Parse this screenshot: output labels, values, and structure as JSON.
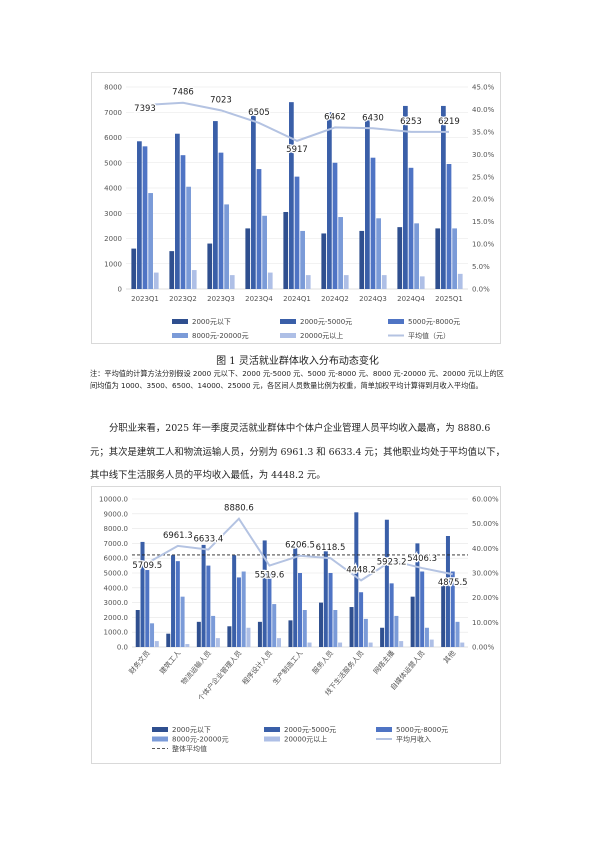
{
  "chart1": {
    "type": "bar",
    "title": "",
    "categories": [
      "2023Q1",
      "2023Q2",
      "2023Q3",
      "2023Q4",
      "2024Q1",
      "2024Q2",
      "2024Q3",
      "2024Q4",
      "2025Q1"
    ],
    "series": [
      {
        "name": "2000元以下",
        "color": "#2f4f8f",
        "values": [
          1600,
          1500,
          1800,
          2400,
          3050,
          2200,
          2300,
          2450,
          2400
        ]
      },
      {
        "name": "2000元-5000元",
        "color": "#3a5fa8",
        "values": [
          5850,
          6150,
          6650,
          6950,
          7400,
          7000,
          6850,
          7250,
          7250
        ]
      },
      {
        "name": "5000元-8000元",
        "color": "#4f74c4",
        "values": [
          5650,
          5300,
          5400,
          4750,
          4450,
          5000,
          5200,
          4800,
          4950
        ]
      },
      {
        "name": "8000元-20000元",
        "color": "#7b9bd8",
        "values": [
          3800,
          4050,
          3350,
          2900,
          2300,
          2850,
          2800,
          2600,
          2400
        ]
      },
      {
        "name": "20000元以上",
        "color": "#aebfe6",
        "values": [
          650,
          750,
          550,
          650,
          550,
          550,
          550,
          500,
          600
        ]
      }
    ],
    "line": {
      "name": "平均值（元）",
      "color": "#b4c3e2",
      "values": [
        7393,
        7486,
        7023,
        6505,
        5917,
        6462,
        6430,
        6253,
        6219
      ],
      "labels": [
        "7393",
        "7486",
        "7023",
        "6505",
        "5917",
        "6462",
        "6430",
        "6253",
        "6219"
      ],
      "pct": [
        41.0,
        41.5,
        39.8,
        37.0,
        33.0,
        36.0,
        35.8,
        35.0,
        35.0
      ]
    },
    "y_left": {
      "min": 0,
      "max": 8000,
      "step": 1000,
      "ticks": [
        "0",
        "1000",
        "2000",
        "3000",
        "4000",
        "5000",
        "6000",
        "7000",
        "8000"
      ]
    },
    "y_right": {
      "min": 0,
      "max": 45,
      "step": 5,
      "ticks": [
        "0.0%",
        "5.0%",
        "10.0%",
        "15.0%",
        "20.0%",
        "25.0%",
        "30.0%",
        "35.0%",
        "40.0%",
        "45.0%"
      ]
    },
    "legend": [
      "2000元以下",
      "2000元-5000元",
      "5000元-8000元",
      "8000元-20000元",
      "20000元以上",
      "平均值（元）"
    ],
    "legend_placement": "bottom",
    "grid": true
  },
  "chart2": {
    "type": "bar",
    "title": "",
    "categories": [
      "财务文员",
      "建筑工人",
      "物流运输人员",
      "个体户企业管理人员",
      "程序设计人员",
      "生产制造工人",
      "服务人员",
      "线下生活服务人员",
      "网络主播",
      "自媒体运营人员",
      "其他"
    ],
    "series": [
      {
        "name": "2000元以下",
        "color": "#2f4f8f",
        "values": [
          2500,
          900,
          1700,
          1400,
          1700,
          1800,
          3000,
          2700,
          1300,
          3400,
          4200
        ]
      },
      {
        "name": "2000元-5000元",
        "color": "#3a5fa8",
        "values": [
          7100,
          6200,
          6900,
          6200,
          7200,
          6700,
          6600,
          9100,
          8600,
          7000,
          7500
        ]
      },
      {
        "name": "5000元-8000元",
        "color": "#4f74c4",
        "values": [
          5200,
          5800,
          5500,
          4700,
          5000,
          5000,
          5000,
          3700,
          4300,
          5100,
          5100
        ]
      },
      {
        "name": "8000元-20000元",
        "color": "#7b9bd8",
        "values": [
          1600,
          3400,
          2100,
          5100,
          2900,
          2500,
          2500,
          1900,
          2100,
          1300,
          1700
        ]
      },
      {
        "name": "20000元以上",
        "color": "#aebfe6",
        "values": [
          400,
          200,
          600,
          1300,
          600,
          300,
          300,
          300,
          400,
          500,
          300
        ]
      }
    ],
    "line": {
      "name": "平均月收入",
      "color": "#b4c3e2",
      "values": [
        5709.5,
        6961.3,
        6633.4,
        8880.6,
        5519.6,
        6206.5,
        6118.5,
        4448.2,
        5923.2,
        5406.3,
        4875.5
      ],
      "labels": [
        "5709.5",
        "6961.3",
        "6633.4",
        "8880.6",
        "5519.6",
        "6206.5",
        "6118.5",
        "4448.2",
        "5923.2",
        "5406.3",
        "4875.5"
      ],
      "pct": [
        34.0,
        41.0,
        39.5,
        52.0,
        33.0,
        37.0,
        36.0,
        27.0,
        35.0,
        32.0,
        29.5
      ]
    },
    "avg_line": {
      "name": "整体平均值",
      "value": 6219
    },
    "y_left": {
      "min": 0,
      "max": 10000,
      "step": 1000,
      "ticks": [
        "0.0",
        "1000.0",
        "2000.0",
        "3000.0",
        "4000.0",
        "5000.0",
        "6000.0",
        "7000.0",
        "8000.0",
        "9000.0",
        "10000.0"
      ]
    },
    "y_right": {
      "min": 0,
      "max": 60,
      "step": 10,
      "ticks": [
        "0.00%",
        "10.00%",
        "20.00%",
        "30.00%",
        "40.00%",
        "50.00%",
        "60.00%"
      ]
    },
    "legend": [
      "2000元以下",
      "2000元-5000元",
      "5000元-8000元",
      "8000元-20000元",
      "20000元以上",
      "平均月收入",
      "整体平均值"
    ],
    "legend_placement": "bottom",
    "grid": true
  },
  "chart_data": [
    {
      "type": "bar",
      "categories": [
        "2023Q1",
        "2023Q2",
        "2023Q3",
        "2023Q4",
        "2024Q1",
        "2024Q2",
        "2024Q3",
        "2024Q4",
        "2025Q1"
      ],
      "ref": "chart1"
    },
    {
      "type": "bar",
      "categories": [
        "财务文员",
        "建筑工人",
        "物流运输人员",
        "个体户企业管理人员",
        "程序设计人员",
        "生产制造工人",
        "服务人员",
        "线下生活服务人员",
        "网络主播",
        "自媒体运营人员",
        "其他"
      ],
      "ref": "chart2"
    }
  ],
  "text": {
    "caption1": "图 1  灵活就业群体收入分布动态变化",
    "note": "注：平均值的计算方法分别假设 2000 元以下、2000 元-5000 元、5000 元-8000 元、8000 元-20000 元、20000 元以上的区间均值为 1000、3500、6500、14000、25000 元，各区间人员数量比例为权重，简单加权平均计算得到月收入平均值。",
    "paragraph": "分职业来看，2025 年一季度灵活就业群体中个体户企业管理人员平均收入最高，为 8880.6 元；其次是建筑工人和物流运输人员，分别为 6961.3 和 6633.4 元；其他职业均处于平均值以下，其中线下生活服务人员的平均收入最低，为 4448.2 元。"
  }
}
